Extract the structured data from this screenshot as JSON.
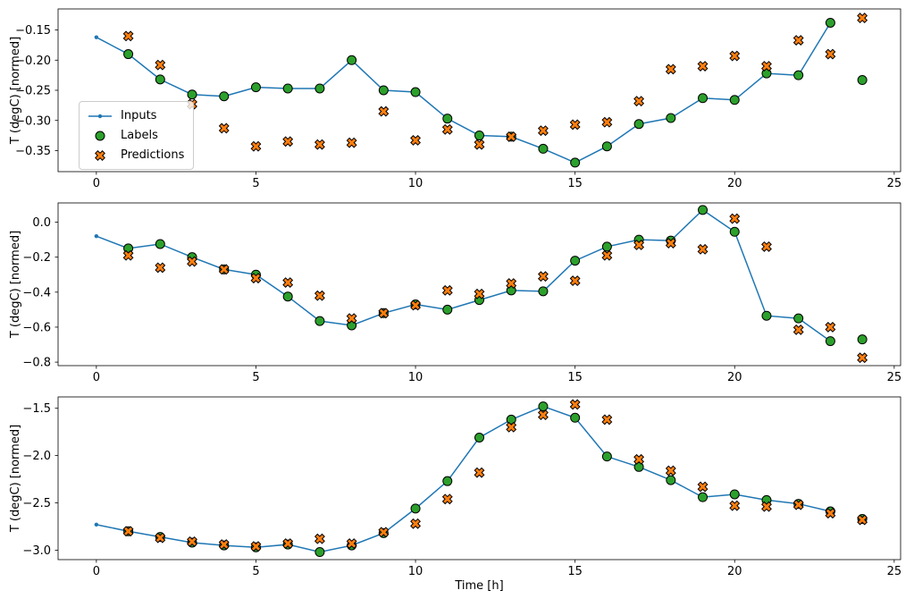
{
  "figure": {
    "xlabel": "Time [h]"
  },
  "legend": {
    "items": [
      "Inputs",
      "Labels",
      "Predictions"
    ]
  },
  "colors": {
    "inputs": "#1f77b4",
    "labels": "#2ca02c",
    "predictions": "#ff7f0e",
    "edge": "#000000"
  },
  "chart_data": [
    {
      "type": "line",
      "ylabel": "T (degC) [normed]",
      "x_ticks": [
        0,
        5,
        10,
        15,
        20,
        25
      ],
      "x_tick_labels": [
        "0",
        "5",
        "10",
        "15",
        "20",
        "25"
      ],
      "y_ticks": [
        -0.15,
        -0.2,
        -0.25,
        -0.3,
        -0.35
      ],
      "y_tick_labels": [
        "−0.15",
        "−0.20",
        "−0.25",
        "−0.30",
        "−0.35"
      ],
      "xlim": [
        -1.2,
        25.2
      ],
      "ylim": [
        -0.385,
        -0.115
      ],
      "series": [
        {
          "name": "Inputs",
          "plot": "line+dots",
          "x": [
            0,
            1,
            2,
            3,
            4,
            5,
            6,
            7,
            8,
            9,
            10,
            11,
            12,
            13,
            14,
            15,
            16,
            17,
            18,
            19,
            20,
            21,
            22,
            23
          ],
          "y": [
            -0.162,
            -0.19,
            -0.232,
            -0.257,
            -0.26,
            -0.245,
            -0.247,
            -0.247,
            -0.2,
            -0.25,
            -0.253,
            -0.297,
            -0.325,
            -0.327,
            -0.347,
            -0.37,
            -0.343,
            -0.306,
            -0.296,
            -0.263,
            -0.266,
            -0.222,
            -0.225,
            -0.138
          ]
        },
        {
          "name": "Labels",
          "plot": "scatter",
          "marker": "circle",
          "x": [
            1,
            2,
            3,
            4,
            5,
            6,
            7,
            8,
            9,
            10,
            11,
            12,
            13,
            14,
            15,
            16,
            17,
            18,
            19,
            20,
            21,
            22,
            23,
            24
          ],
          "y": [
            -0.19,
            -0.232,
            -0.257,
            -0.26,
            -0.245,
            -0.247,
            -0.247,
            -0.2,
            -0.25,
            -0.253,
            -0.297,
            -0.325,
            -0.327,
            -0.347,
            -0.37,
            -0.343,
            -0.306,
            -0.296,
            -0.263,
            -0.266,
            -0.222,
            -0.225,
            -0.138,
            -0.233
          ]
        },
        {
          "name": "Predictions",
          "plot": "scatter",
          "marker": "X",
          "x": [
            1,
            2,
            3,
            4,
            5,
            6,
            7,
            8,
            9,
            10,
            11,
            12,
            13,
            14,
            15,
            16,
            17,
            18,
            19,
            20,
            21,
            22,
            23,
            24
          ],
          "y": [
            -0.16,
            -0.208,
            -0.273,
            -0.313,
            -0.343,
            -0.335,
            -0.34,
            -0.337,
            -0.285,
            -0.333,
            -0.315,
            -0.34,
            -0.327,
            -0.317,
            -0.307,
            -0.303,
            -0.268,
            -0.215,
            -0.21,
            -0.193,
            -0.21,
            -0.167,
            -0.19,
            -0.13
          ]
        }
      ]
    },
    {
      "type": "line",
      "ylabel": "T (degC) [normed]",
      "x_ticks": [
        0,
        5,
        10,
        15,
        20,
        25
      ],
      "x_tick_labels": [
        "0",
        "5",
        "10",
        "15",
        "20",
        "25"
      ],
      "y_ticks": [
        0.0,
        -0.2,
        -0.4,
        -0.6,
        -0.8
      ],
      "y_tick_labels": [
        "0.0",
        "−0.2",
        "−0.4",
        "−0.6",
        "−0.8"
      ],
      "xlim": [
        -1.2,
        25.2
      ],
      "ylim": [
        -0.82,
        0.11
      ],
      "series": [
        {
          "name": "Inputs",
          "plot": "line+dots",
          "x": [
            0,
            1,
            2,
            3,
            4,
            5,
            6,
            7,
            8,
            9,
            10,
            11,
            12,
            13,
            14,
            15,
            16,
            17,
            18,
            19,
            20,
            21,
            22,
            23
          ],
          "y": [
            -0.08,
            -0.15,
            -0.125,
            -0.2,
            -0.27,
            -0.3,
            -0.425,
            -0.565,
            -0.59,
            -0.52,
            -0.47,
            -0.5,
            -0.445,
            -0.39,
            -0.395,
            -0.22,
            -0.14,
            -0.1,
            -0.105,
            0.07,
            -0.055,
            -0.535,
            -0.55,
            -0.68
          ]
        },
        {
          "name": "Labels",
          "plot": "scatter",
          "marker": "circle",
          "x": [
            1,
            2,
            3,
            4,
            5,
            6,
            7,
            8,
            9,
            10,
            11,
            12,
            13,
            14,
            15,
            16,
            17,
            18,
            19,
            20,
            21,
            22,
            23,
            24
          ],
          "y": [
            -0.15,
            -0.125,
            -0.2,
            -0.27,
            -0.3,
            -0.425,
            -0.565,
            -0.59,
            -0.52,
            -0.47,
            -0.5,
            -0.445,
            -0.39,
            -0.395,
            -0.22,
            -0.14,
            -0.1,
            -0.105,
            0.07,
            -0.055,
            -0.535,
            -0.55,
            -0.68,
            -0.67
          ]
        },
        {
          "name": "Predictions",
          "plot": "scatter",
          "marker": "X",
          "x": [
            1,
            2,
            3,
            4,
            5,
            6,
            7,
            8,
            9,
            10,
            11,
            12,
            13,
            14,
            15,
            16,
            17,
            18,
            19,
            20,
            21,
            22,
            23,
            24
          ],
          "y": [
            -0.19,
            -0.26,
            -0.225,
            -0.27,
            -0.32,
            -0.345,
            -0.42,
            -0.55,
            -0.52,
            -0.475,
            -0.39,
            -0.41,
            -0.35,
            -0.31,
            -0.335,
            -0.19,
            -0.13,
            -0.12,
            -0.155,
            0.02,
            -0.14,
            -0.615,
            -0.6,
            -0.775
          ]
        }
      ]
    },
    {
      "type": "line",
      "ylabel": "T (degC) [normed]",
      "x_ticks": [
        0,
        5,
        10,
        15,
        20,
        25
      ],
      "x_tick_labels": [
        "0",
        "5",
        "10",
        "15",
        "20",
        "25"
      ],
      "y_ticks": [
        -1.5,
        -2.0,
        -2.5,
        -3.0
      ],
      "y_tick_labels": [
        "−1.5",
        "−2.0",
        "−2.5",
        "−3.0"
      ],
      "xlim": [
        -1.2,
        25.2
      ],
      "ylim": [
        -3.1,
        -1.38
      ],
      "series": [
        {
          "name": "Inputs",
          "plot": "line+dots",
          "x": [
            0,
            1,
            2,
            3,
            4,
            5,
            6,
            7,
            8,
            9,
            10,
            11,
            12,
            13,
            14,
            15,
            16,
            17,
            18,
            19,
            20,
            21,
            22,
            23
          ],
          "y": [
            -2.73,
            -2.8,
            -2.86,
            -2.92,
            -2.95,
            -2.97,
            -2.94,
            -3.02,
            -2.95,
            -2.82,
            -2.56,
            -2.27,
            -1.81,
            -1.62,
            -1.48,
            -1.6,
            -2.01,
            -2.12,
            -2.26,
            -2.44,
            -2.41,
            -2.47,
            -2.51,
            -2.59
          ]
        },
        {
          "name": "Labels",
          "plot": "scatter",
          "marker": "circle",
          "x": [
            1,
            2,
            3,
            4,
            5,
            6,
            7,
            8,
            9,
            10,
            11,
            12,
            13,
            14,
            15,
            16,
            17,
            18,
            19,
            20,
            21,
            22,
            23,
            24
          ],
          "y": [
            -2.8,
            -2.86,
            -2.92,
            -2.95,
            -2.97,
            -2.94,
            -3.02,
            -2.95,
            -2.82,
            -2.56,
            -2.27,
            -1.81,
            -1.62,
            -1.48,
            -1.6,
            -2.01,
            -2.12,
            -2.26,
            -2.44,
            -2.41,
            -2.47,
            -2.51,
            -2.59,
            -2.67
          ]
        },
        {
          "name": "Predictions",
          "plot": "scatter",
          "marker": "X",
          "x": [
            1,
            2,
            3,
            4,
            5,
            6,
            7,
            8,
            9,
            10,
            11,
            12,
            13,
            14,
            15,
            16,
            17,
            18,
            19,
            20,
            21,
            22,
            23,
            24
          ],
          "y": [
            -2.8,
            -2.87,
            -2.91,
            -2.94,
            -2.96,
            -2.93,
            -2.88,
            -2.93,
            -2.81,
            -2.72,
            -2.46,
            -2.18,
            -1.7,
            -1.57,
            -1.46,
            -1.62,
            -2.04,
            -2.16,
            -2.33,
            -2.53,
            -2.54,
            -2.52,
            -2.61,
            -2.68
          ]
        }
      ]
    }
  ]
}
